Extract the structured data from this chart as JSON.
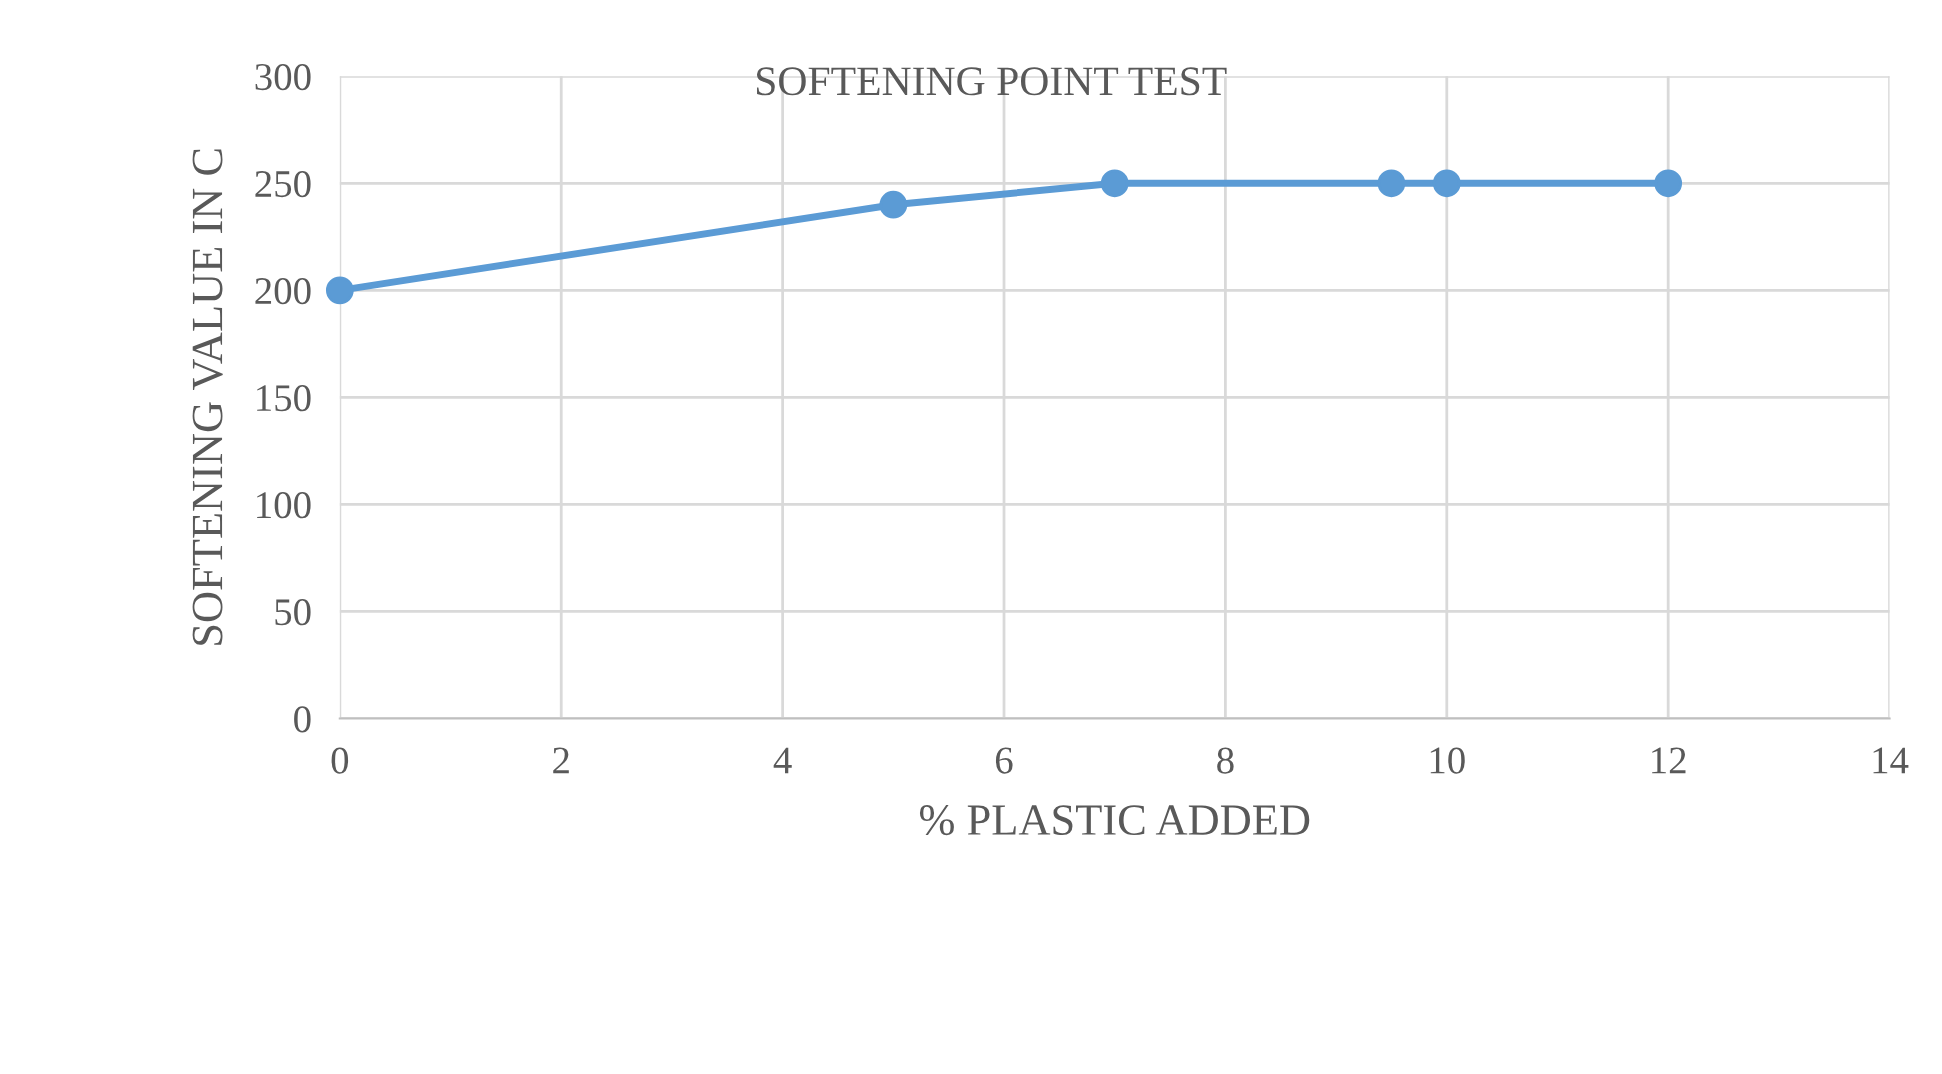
{
  "chart_data": {
    "type": "line",
    "title": "SOFTENING POINT TEST",
    "xlabel": "% PLASTIC ADDED",
    "ylabel": "SOFTENING VALUE IN C",
    "series": [
      {
        "color": "#5b9bd5",
        "x": [
          0,
          5,
          7,
          9.5,
          10,
          12
        ],
        "values": [
          200,
          240,
          250,
          250,
          250,
          250
        ]
      }
    ],
    "xlim": [
      0,
      14
    ],
    "xticks": [
      0,
      2,
      4,
      6,
      8,
      10,
      12,
      14
    ],
    "ylim": [
      0,
      300
    ],
    "yticks": [
      0,
      50,
      100,
      150,
      200,
      250,
      300
    ],
    "grid": true,
    "marker": "circle",
    "line_style": "solid",
    "legend": false
  }
}
